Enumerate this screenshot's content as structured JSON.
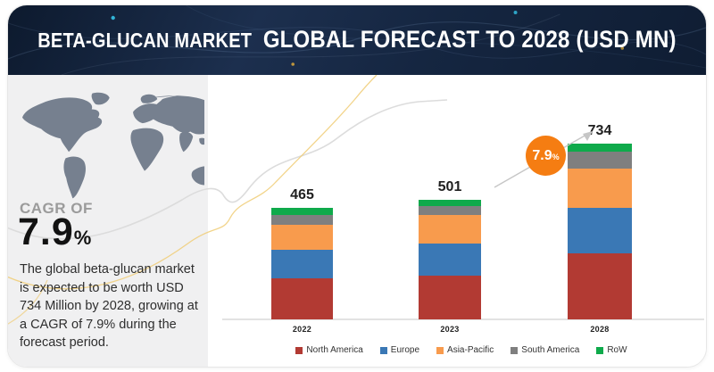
{
  "header": {
    "title_part1": "BETA-GLUCAN MARKET",
    "title_part2": "GLOBAL FORECAST TO 2028 (USD MN)"
  },
  "sidebar": {
    "cagr_label": "CAGR OF",
    "cagr_value": "7.9",
    "cagr_percent_sign": "%",
    "description": "The global beta-glucan market is expected to be worth USD 734 Million by 2028, growing at a CAGR of 7.9% during the forecast period."
  },
  "growth_badge": {
    "value": "7.9",
    "percent_sign": "%"
  },
  "chart_data": {
    "type": "bar",
    "stacked": true,
    "title": "BETA-GLUCAN MARKET GLOBAL FORECAST TO 2028 (USD MN)",
    "xlabel": "",
    "ylabel": "USD MN",
    "categories": [
      "2022",
      "2023",
      "2028"
    ],
    "totals": [
      465,
      501,
      734
    ],
    "series": [
      {
        "name": "North America",
        "color": "#b23a33",
        "values": [
          171,
          184,
          275
        ]
      },
      {
        "name": "Europe",
        "color": "#3a78b5",
        "values": [
          122,
          133,
          193
        ]
      },
      {
        "name": "Asia-Pacific",
        "color": "#f89b4d",
        "values": [
          104,
          118,
          164
        ]
      },
      {
        "name": "South America",
        "color": "#7f7f7f",
        "values": [
          40,
          40,
          68
        ]
      },
      {
        "name": "RoW",
        "color": "#0faa4b",
        "values": [
          28,
          26,
          34
        ]
      }
    ],
    "annotations": [
      {
        "text": "7.9%",
        "kind": "cagr-badge",
        "color": "#f57d12"
      }
    ],
    "legend_position": "bottom",
    "grid": false,
    "bar_value_labels": true
  },
  "colors": {
    "header_bg": "#152641",
    "panel_bg": "#f0f0f1",
    "map_fill": "#76808f",
    "axis_line": "#e2e2e2",
    "accent_orange": "#f57d12",
    "curve_gray": "#d9d9d9",
    "curve_gold": "#f0cc76"
  }
}
